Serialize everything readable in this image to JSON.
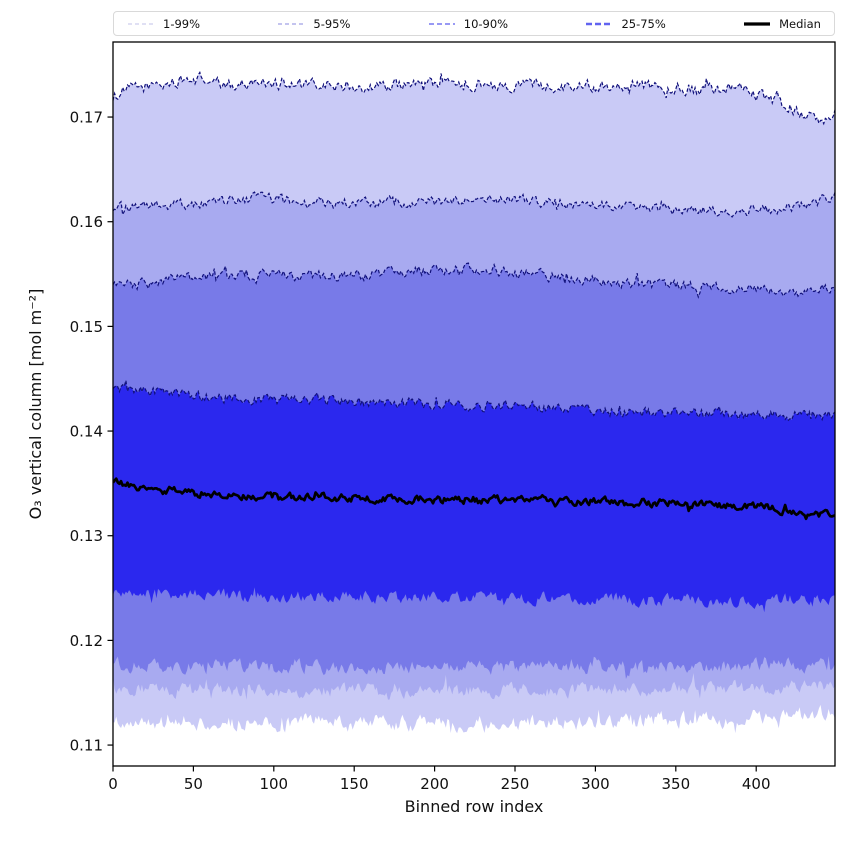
{
  "figure": {
    "xlabel": "Binned row index",
    "ylabel": "O₃ vertical column [mol m⁻²]",
    "background": "#ffffff",
    "legend": {
      "border_color": "#d9d9d9",
      "entries": [
        {
          "label": "1-99%",
          "color": "#cdcdee",
          "dash": "4,3",
          "width": 1.2
        },
        {
          "label": "5-95%",
          "color": "#b0b1ea",
          "dash": "4,3",
          "width": 1.4
        },
        {
          "label": "10-90%",
          "color": "#898bf2",
          "dash": "5,3",
          "width": 1.7
        },
        {
          "label": "25-75%",
          "color": "#6163f0",
          "dash": "6,3",
          "width": 2.4
        },
        {
          "label": "Median",
          "color": "#000000",
          "dash": "",
          "width": 3.2
        }
      ]
    },
    "axes": {
      "xlim": [
        0,
        449
      ],
      "ylim": [
        0.108,
        0.17717
      ],
      "xtick_labels": [
        "0",
        "50",
        "100",
        "150",
        "200",
        "250",
        "300",
        "350",
        "400"
      ],
      "xtick_values": [
        0,
        50,
        100,
        150,
        200,
        250,
        300,
        350,
        400
      ],
      "ytick_labels": [
        "0.11",
        "0.12",
        "0.13",
        "0.14",
        "0.15",
        "0.16",
        "0.17"
      ],
      "ytick_values": [
        0.11,
        0.12,
        0.13,
        0.14,
        0.15,
        0.16,
        0.17
      ]
    }
  },
  "chart_data": {
    "type": "area",
    "subtype": "percentile-band-fan-chart",
    "title": "",
    "xlabel": "Binned row index",
    "ylabel": "O₃ vertical column [mol m⁻²]",
    "x_range": [
      0,
      449
    ],
    "n_points": 450,
    "grid": false,
    "legend_position": "top-expanded",
    "edge_line": {
      "color": "#10107a",
      "dash": "3.5,2",
      "width": 1.2,
      "note": "dashed dark-navy line on upper edge of each band only"
    },
    "median_line": {
      "color": "#000000",
      "width": 2.7,
      "noise": 0.00028
    },
    "percentile_curves": {
      "p99": {
        "x": [
          0,
          10,
          30,
          55,
          70,
          90,
          120,
          160,
          200,
          240,
          280,
          320,
          360,
          390,
          415,
          435,
          442,
          449
        ],
        "v": [
          0.172,
          0.1727,
          0.1731,
          0.1737,
          0.1729,
          0.1734,
          0.173,
          0.1729,
          0.1732,
          0.1731,
          0.173,
          0.1731,
          0.1728,
          0.1727,
          0.1714,
          0.1698,
          0.1693,
          0.1704
        ]
      },
      "p95": {
        "x": [
          0,
          40,
          90,
          140,
          200,
          250,
          300,
          350,
          400,
          435,
          449
        ],
        "v": [
          0.1612,
          0.1616,
          0.1622,
          0.1617,
          0.1619,
          0.1621,
          0.1616,
          0.1612,
          0.161,
          0.1615,
          0.1626
        ]
      },
      "p90": {
        "x": [
          0,
          45,
          90,
          140,
          190,
          230,
          270,
          320,
          370,
          420,
          449
        ],
        "v": [
          0.1537,
          0.1546,
          0.1549,
          0.1547,
          0.1553,
          0.1556,
          0.1548,
          0.1541,
          0.1537,
          0.1534,
          0.1537
        ]
      },
      "p75": {
        "x": [
          0,
          50,
          100,
          150,
          200,
          250,
          300,
          350,
          400,
          440,
          449
        ],
        "v": [
          0.1442,
          0.1434,
          0.143,
          0.1428,
          0.1426,
          0.1424,
          0.1419,
          0.1417,
          0.1416,
          0.1414,
          0.1417
        ]
      },
      "p50": {
        "x": [
          0,
          15,
          50,
          100,
          150,
          200,
          250,
          300,
          350,
          400,
          432,
          449
        ],
        "v": [
          0.1352,
          0.1346,
          0.1341,
          0.1338,
          0.1336,
          0.1334,
          0.1335,
          0.1333,
          0.1331,
          0.1329,
          0.1318,
          0.1323
        ]
      },
      "p25": {
        "x": [
          0,
          50,
          100,
          150,
          200,
          250,
          300,
          350,
          400,
          449
        ],
        "v": [
          0.1247,
          0.1244,
          0.1242,
          0.1241,
          0.1241,
          0.1241,
          0.1239,
          0.1238,
          0.1238,
          0.1241
        ]
      },
      "p10": {
        "x": [
          0,
          100,
          200,
          300,
          400,
          449
        ],
        "v": [
          0.1176,
          0.1174,
          0.1174,
          0.1174,
          0.1175,
          0.1177
        ]
      },
      "p5": {
        "x": [
          0,
          100,
          200,
          300,
          400,
          449
        ],
        "v": [
          0.1153,
          0.1152,
          0.1152,
          0.1153,
          0.1154,
          0.1156
        ]
      },
      "p1": {
        "x": [
          0,
          50,
          100,
          200,
          300,
          380,
          430,
          449
        ],
        "v": [
          0.1124,
          0.1122,
          0.1121,
          0.1121,
          0.1122,
          0.1124,
          0.1129,
          0.1132
        ]
      }
    },
    "noise_amplitude": {
      "p99": 0.00042,
      "p95": 0.00038,
      "p90": 0.00038,
      "p75": 0.00036,
      "p50": 0.00028,
      "p25": 0.00042,
      "p10": 0.00048,
      "p5": 0.0005,
      "p1": 0.00058
    },
    "bands": [
      {
        "label": "1-99%",
        "lower": "p1",
        "upper": "p99",
        "fill": "#c9caf6"
      },
      {
        "label": "5-95%",
        "lower": "p5",
        "upper": "p95",
        "fill": "#a8aaf0"
      },
      {
        "label": "10-90%",
        "lower": "p10",
        "upper": "p90",
        "fill": "#787ae8"
      },
      {
        "label": "25-75%",
        "lower": "p25",
        "upper": "p75",
        "fill": "#2b28ee"
      }
    ]
  }
}
